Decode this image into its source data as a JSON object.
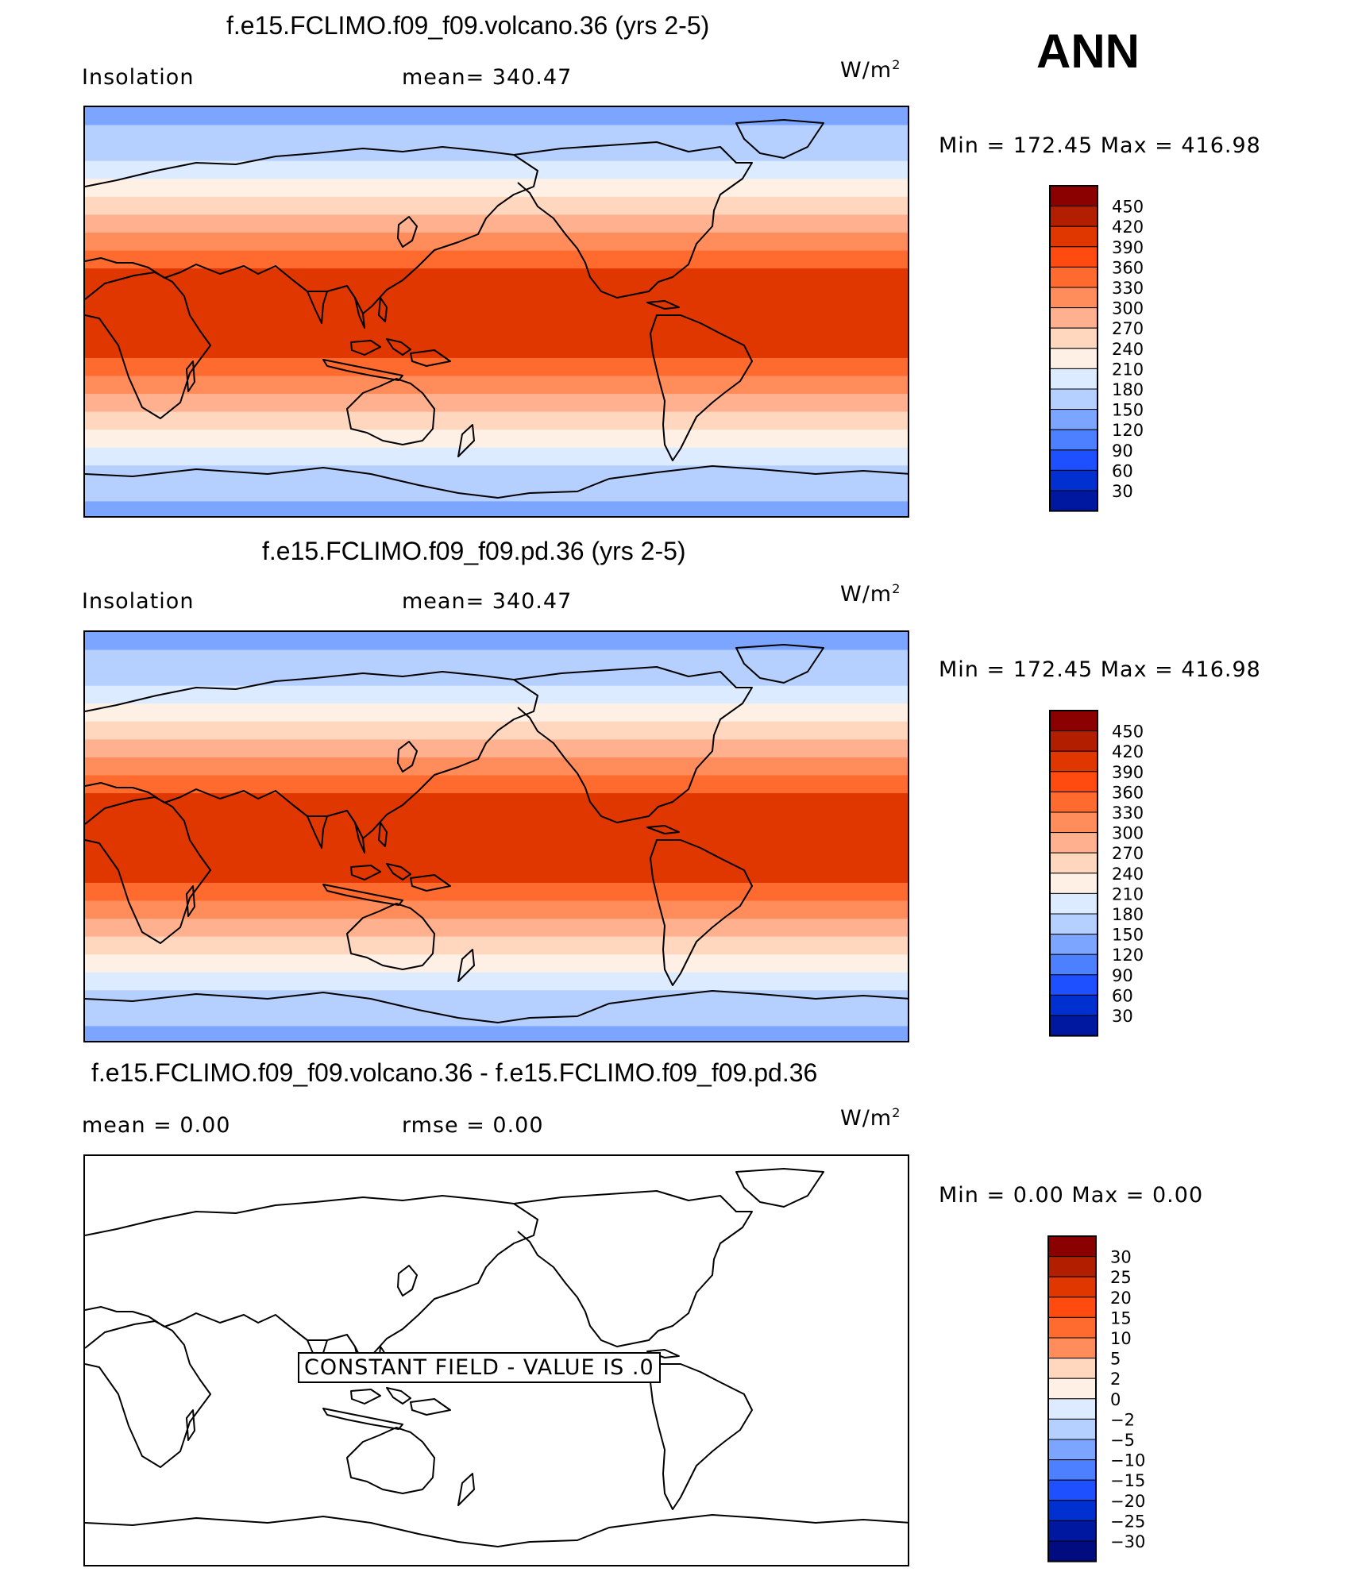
{
  "season": "ANN",
  "panels": [
    {
      "title": "f.e15.FCLIMO.f09_f09.volcano.36 (yrs 2-5)",
      "left_label": "Insolation",
      "center_label": "mean=  340.47",
      "units": "W/m",
      "units_sup": "2",
      "minmax": "Min  =  172.45  Max  =  416.98"
    },
    {
      "title": "f.e15.FCLIMO.f09_f09.pd.36 (yrs 2-5)",
      "left_label": "Insolation",
      "center_label": "mean=  340.47",
      "units": "W/m",
      "units_sup": "2",
      "minmax": "Min  =  172.45  Max  =  416.98"
    },
    {
      "title": "f.e15.FCLIMO.f09_f09.volcano.36 - f.e15.FCLIMO.f09_f09.pd.36",
      "left_label": "mean  =     0.00",
      "center_label": "rmse  =     0.00",
      "units": "W/m",
      "units_sup": "2",
      "minmax": "Min  =      0.00  Max  =      0.00",
      "constant_field": "CONSTANT FIELD - VALUE IS .0"
    }
  ],
  "chart_data": [
    {
      "type": "heatmap",
      "title": "f.e15.FCLIMO.f09_f09.volcano.36 (yrs 2-5)",
      "variable": "Insolation",
      "units": "W/m2",
      "mean": 340.47,
      "min": 172.45,
      "max": 416.98,
      "field_pattern": "zonal bands, maximum in tropics",
      "zonal_band_colors_north_to_south": [
        "#7BA5FF",
        "#B5CFFF",
        "#B5CFFF",
        "#DCEBFF",
        "#FFF0E5",
        "#FFD6BE",
        "#FFB08E",
        "#FF8C5A",
        "#FF6A2E",
        "#E03600",
        "#E03600",
        "#E03600",
        "#E03600",
        "#E03600",
        "#FF6A2E",
        "#FF8C5A",
        "#FFB08E",
        "#FFD6BE",
        "#FFF0E5",
        "#DCEBFF",
        "#B5CFFF",
        "#B5CFFF",
        "#7BA5FF"
      ],
      "colorbar": {
        "levels": [
          450,
          420,
          390,
          360,
          330,
          300,
          270,
          240,
          210,
          180,
          150,
          120,
          90,
          60,
          30
        ],
        "colors": [
          "#8B0000",
          "#B21F00",
          "#E03600",
          "#FF4A10",
          "#FF6A2E",
          "#FF8C5A",
          "#FFB08E",
          "#FFD6BE",
          "#FFF0E5",
          "#DCEBFF",
          "#B5CFFF",
          "#7BA5FF",
          "#4D80FF",
          "#1F50FF",
          "#0030D0",
          "#0018A0"
        ]
      }
    },
    {
      "type": "heatmap",
      "title": "f.e15.FCLIMO.f09_f09.pd.36 (yrs 2-5)",
      "variable": "Insolation",
      "units": "W/m2",
      "mean": 340.47,
      "min": 172.45,
      "max": 416.98,
      "field_pattern": "zonal bands, maximum in tropics",
      "zonal_band_colors_north_to_south": [
        "#7BA5FF",
        "#B5CFFF",
        "#B5CFFF",
        "#DCEBFF",
        "#FFF0E5",
        "#FFD6BE",
        "#FFB08E",
        "#FF8C5A",
        "#FF6A2E",
        "#E03600",
        "#E03600",
        "#E03600",
        "#E03600",
        "#E03600",
        "#FF6A2E",
        "#FF8C5A",
        "#FFB08E",
        "#FFD6BE",
        "#FFF0E5",
        "#DCEBFF",
        "#B5CFFF",
        "#B5CFFF",
        "#7BA5FF"
      ],
      "colorbar": {
        "levels": [
          450,
          420,
          390,
          360,
          330,
          300,
          270,
          240,
          210,
          180,
          150,
          120,
          90,
          60,
          30
        ],
        "colors": [
          "#8B0000",
          "#B21F00",
          "#E03600",
          "#FF4A10",
          "#FF6A2E",
          "#FF8C5A",
          "#FFB08E",
          "#FFD6BE",
          "#FFF0E5",
          "#DCEBFF",
          "#B5CFFF",
          "#7BA5FF",
          "#4D80FF",
          "#1F50FF",
          "#0030D0",
          "#0018A0"
        ]
      }
    },
    {
      "type": "heatmap",
      "title": "f.e15.FCLIMO.f09_f09.volcano.36 - f.e15.FCLIMO.f09_f09.pd.36",
      "units": "W/m2",
      "mean": 0.0,
      "rmse": 0.0,
      "min": 0.0,
      "max": 0.0,
      "field_pattern": "constant field, value 0",
      "colorbar": {
        "levels": [
          "30",
          "25",
          "20",
          "15",
          "10",
          "5",
          "2",
          "0",
          "−2",
          "−5",
          "−10",
          "−15",
          "−20",
          "−25",
          "−30"
        ],
        "colors": [
          "#8B0000",
          "#B21F00",
          "#E03600",
          "#FF4A10",
          "#FF6A2E",
          "#FF8C5A",
          "#FFD6BE",
          "#FFF0E5",
          "#DCEBFF",
          "#B5CFFF",
          "#7BA5FF",
          "#4D80FF",
          "#1F50FF",
          "#0030D0",
          "#0018A0",
          "#000C80"
        ]
      }
    }
  ]
}
